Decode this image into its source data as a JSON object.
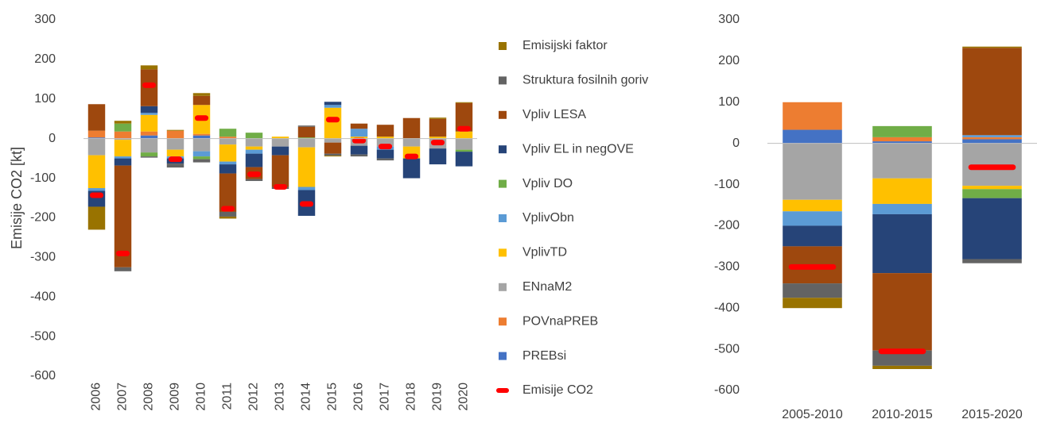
{
  "chart_data": [
    {
      "type": "bar",
      "stacked": true,
      "y_label": "Emisije CO2 [kt]",
      "rotate_categories": true,
      "legend": "right",
      "grid": false,
      "categories": [
        "2006",
        "2007",
        "2008",
        "2009",
        "2010",
        "2011",
        "2012",
        "2013",
        "2014",
        "2015",
        "2016",
        "2017",
        "2018",
        "2019",
        "2020"
      ],
      "ylim": [
        -600,
        300
      ],
      "yticks": [
        -600,
        -500,
        -400,
        -300,
        -200,
        -100,
        0,
        100,
        200,
        300
      ],
      "series": [
        {
          "name": "PREBsi",
          "color": "#4472c4",
          "values": [
            3,
            0,
            8,
            0,
            8,
            0,
            0,
            0,
            0,
            0,
            0,
            0,
            0,
            0,
            0
          ]
        },
        {
          "name": "POVnaPREB",
          "color": "#ed7d31",
          "values": [
            17,
            18,
            10,
            20,
            4,
            5,
            0,
            0,
            0,
            0,
            0,
            0,
            0,
            0,
            0
          ]
        },
        {
          "name": "ENnaM2",
          "color": "#a5a5a5",
          "values": [
            -42,
            -3,
            -35,
            -28,
            -32,
            -15,
            -20,
            -20,
            -22,
            -10,
            -18,
            -20,
            -20,
            -25,
            -28
          ]
        },
        {
          "name": "VplivTD",
          "color": "#ffc000",
          "values": [
            -83,
            -42,
            42,
            -17,
            73,
            -43,
            -8,
            5,
            -100,
            78,
            5,
            5,
            -30,
            5,
            18
          ]
        },
        {
          "name": "VplivObn",
          "color": "#5b9bd5",
          "values": [
            -7,
            -5,
            5,
            -5,
            -13,
            -7,
            -10,
            0,
            -8,
            7,
            20,
            -8,
            0,
            0,
            0
          ]
        },
        {
          "name": "Vpliv DO",
          "color": "#70ad47",
          "values": [
            0,
            20,
            -10,
            0,
            -7,
            20,
            15,
            0,
            3,
            0,
            0,
            0,
            0,
            0,
            -5
          ]
        },
        {
          "name": "Vpliv EL in negOVE",
          "color": "#264478",
          "values": [
            -40,
            -18,
            17,
            -13,
            0,
            -23,
            -34,
            -22,
            -65,
            8,
            -22,
            -22,
            -50,
            -40,
            -37
          ]
        },
        {
          "name": "Vpliv LESA",
          "color": "#9e480e",
          "values": [
            67,
            -257,
            93,
            0,
            23,
            -97,
            -30,
            -80,
            27,
            -28,
            13,
            30,
            52,
            45,
            72
          ]
        },
        {
          "name": "Struktura fosilnih goriv",
          "color": "#636363",
          "values": [
            0,
            -10,
            -3,
            -10,
            -8,
            -12,
            -5,
            -5,
            3,
            -5,
            -5,
            -5,
            0,
            0,
            0
          ]
        },
        {
          "name": "Emisijski faktor",
          "color": "#997300",
          "values": [
            -58,
            7,
            10,
            2,
            7,
            -5,
            0,
            0,
            0,
            -2,
            0,
            0,
            0,
            3,
            2
          ]
        }
      ],
      "markers": {
        "name": "Emisije CO2",
        "color": "#ff0000",
        "values": [
          -143,
          -290,
          135,
          -52,
          52,
          -177,
          -90,
          -122,
          -165,
          48,
          -5,
          -20,
          -45,
          -10,
          25
        ]
      }
    },
    {
      "type": "bar",
      "stacked": true,
      "rotate_categories": false,
      "grid": false,
      "categories": [
        "2005-2010",
        "2010-2015",
        "2015-2020"
      ],
      "ylim": [
        -600,
        300
      ],
      "yticks": [
        -600,
        -500,
        -400,
        -300,
        -200,
        -100,
        0,
        100,
        200,
        300
      ],
      "series": [
        {
          "color": "#4472c4",
          "values": [
            33,
            5,
            10
          ]
        },
        {
          "color": "#ed7d31",
          "values": [
            67,
            10,
            5
          ]
        },
        {
          "color": "#a5a5a5",
          "values": [
            -137,
            -85,
            -103
          ]
        },
        {
          "color": "#ffc000",
          "values": [
            -28,
            -62,
            -8
          ]
        },
        {
          "color": "#5b9bd5",
          "values": [
            -35,
            -25,
            5
          ]
        },
        {
          "color": "#70ad47",
          "values": [
            0,
            27,
            -22
          ]
        },
        {
          "color": "#264478",
          "values": [
            -50,
            -143,
            -148
          ]
        },
        {
          "color": "#9e480e",
          "values": [
            -90,
            -188,
            212
          ]
        },
        {
          "color": "#636363",
          "values": [
            -35,
            -37,
            -10
          ]
        },
        {
          "color": "#997300",
          "values": [
            -25,
            -8,
            3
          ]
        }
      ],
      "markers": {
        "color": "#ff0000",
        "values": [
          -300,
          -505,
          -58
        ]
      }
    }
  ]
}
